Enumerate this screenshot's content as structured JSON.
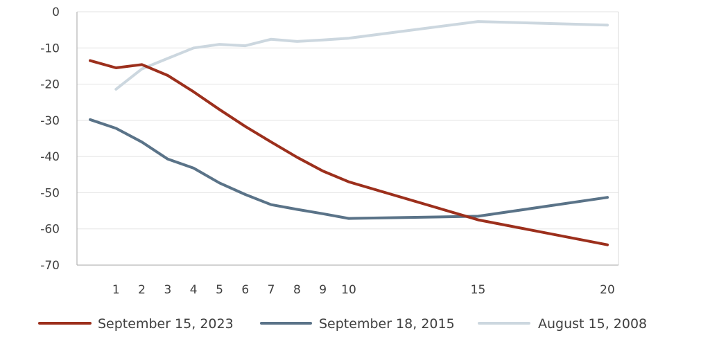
{
  "chart_data": {
    "type": "line",
    "title": "",
    "xlabel": "",
    "ylabel": "",
    "x": [
      1,
      2,
      3,
      4,
      5,
      6,
      7,
      8,
      9,
      10,
      15,
      20
    ],
    "xlim": [
      0,
      20
    ],
    "ylim": [
      -70,
      0
    ],
    "yticks": [
      0,
      -10,
      -20,
      -30,
      -40,
      -50,
      -60,
      -70
    ],
    "xticks": [
      1,
      2,
      3,
      4,
      5,
      6,
      7,
      8,
      9,
      10,
      15,
      20
    ],
    "grid": true,
    "legend_position": "bottom",
    "series": [
      {
        "name": "September 15, 2023",
        "color": "#9c2f1c",
        "x": [
          0,
          1,
          2,
          3,
          4,
          5,
          6,
          7,
          8,
          9,
          10,
          15,
          20
        ],
        "values": [
          -13.5,
          -15.5,
          -14.6,
          -17.6,
          -22.1,
          -27.0,
          -31.7,
          -36.0,
          -40.2,
          -44.0,
          -47.0,
          -57.5,
          -64.4
        ]
      },
      {
        "name": "September 18, 2015",
        "color": "#5a7388",
        "x": [
          0,
          1,
          2,
          3,
          4,
          5,
          6,
          7,
          8,
          9,
          10,
          15,
          20
        ],
        "values": [
          -29.8,
          -32.2,
          -36.0,
          -40.7,
          -43.2,
          -47.3,
          -50.5,
          -53.3,
          -54.6,
          -55.8,
          -57.1,
          -56.5,
          -51.3
        ]
      },
      {
        "name": "August 15, 2008",
        "color": "#ccd7df",
        "x": [
          1,
          2,
          3,
          4,
          5,
          6,
          7,
          8,
          9,
          10,
          15,
          20
        ],
        "values": [
          -21.4,
          -15.8,
          -12.9,
          -10.0,
          -9.0,
          -9.4,
          -7.6,
          -8.2,
          -7.8,
          -7.3,
          -2.7,
          -3.7
        ]
      }
    ]
  }
}
